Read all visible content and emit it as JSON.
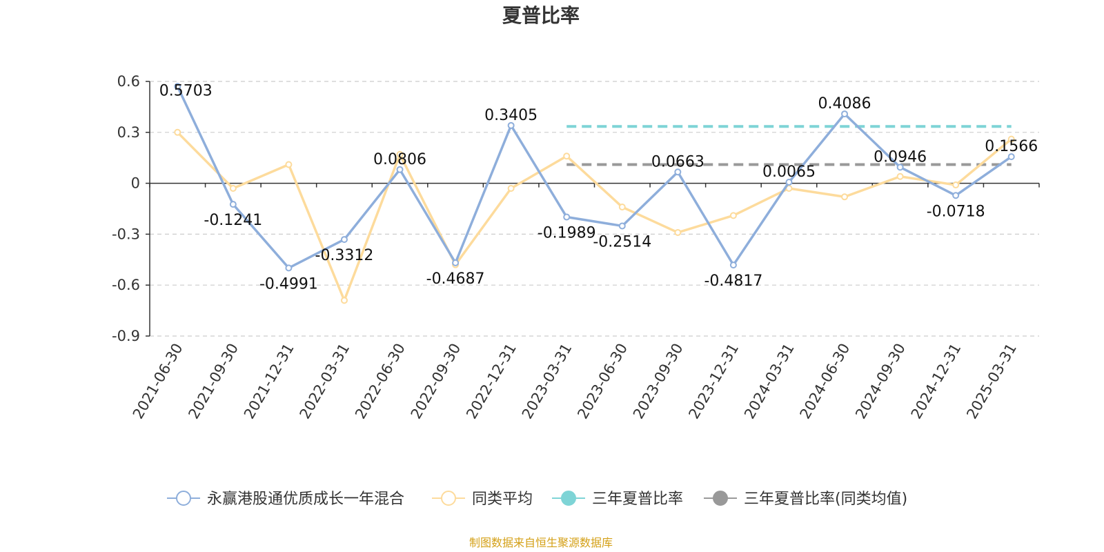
{
  "chart_data": {
    "type": "line",
    "title": "夏普比率",
    "source": "制图数据来自恒生聚源数据库",
    "categories": [
      "2021-06-30",
      "2021-09-30",
      "2021-12-31",
      "2022-03-31",
      "2022-06-30",
      "2022-09-30",
      "2022-12-31",
      "2023-03-31",
      "2023-06-30",
      "2023-09-30",
      "2023-12-31",
      "2024-03-31",
      "2024-06-30",
      "2024-09-30",
      "2024-12-31",
      "2025-03-31"
    ],
    "ylim": [
      -0.9,
      0.6
    ],
    "yticks": [
      0.6,
      0.3,
      0,
      -0.3,
      -0.6,
      -0.9
    ],
    "ytick_labels": [
      "0.6",
      "0.3",
      "0",
      "-0.3",
      "-0.6",
      "-0.9"
    ],
    "grid": true,
    "legend_position": "bottom",
    "series": [
      {
        "name": "永赢港股通优质成长一年混合",
        "color": "#8eaedb",
        "values": [
          0.5703,
          -0.1241,
          -0.4991,
          -0.3312,
          0.0806,
          -0.4687,
          0.3405,
          -0.1989,
          -0.2514,
          0.0663,
          -0.4817,
          0.0065,
          0.4086,
          0.0946,
          -0.0718,
          0.1566
        ],
        "labels": [
          "0.5703",
          "-0.1241",
          "-0.4991",
          "-0.3312",
          "0.0806",
          "-0.4687",
          "0.3405",
          "-0.1989",
          "-0.2514",
          "0.0663",
          "-0.4817",
          "0.0065",
          "0.4086",
          "0.0946",
          "-0.0718",
          "0.1566"
        ]
      },
      {
        "name": "同类平均",
        "color": "#fddb9c",
        "values": [
          0.3,
          -0.03,
          0.11,
          -0.69,
          0.17,
          -0.48,
          -0.03,
          0.16,
          -0.14,
          -0.29,
          -0.19,
          -0.03,
          -0.08,
          0.04,
          -0.01,
          0.26
        ]
      }
    ],
    "reference_lines": [
      {
        "name": "三年夏普比率",
        "color": "#7ed4d6",
        "value": 0.335,
        "from_index": 7,
        "to_index": 15
      },
      {
        "name": "三年夏普比率(同类均值)",
        "color": "#999999",
        "value": 0.11,
        "from_index": 7,
        "to_index": 15
      }
    ]
  }
}
